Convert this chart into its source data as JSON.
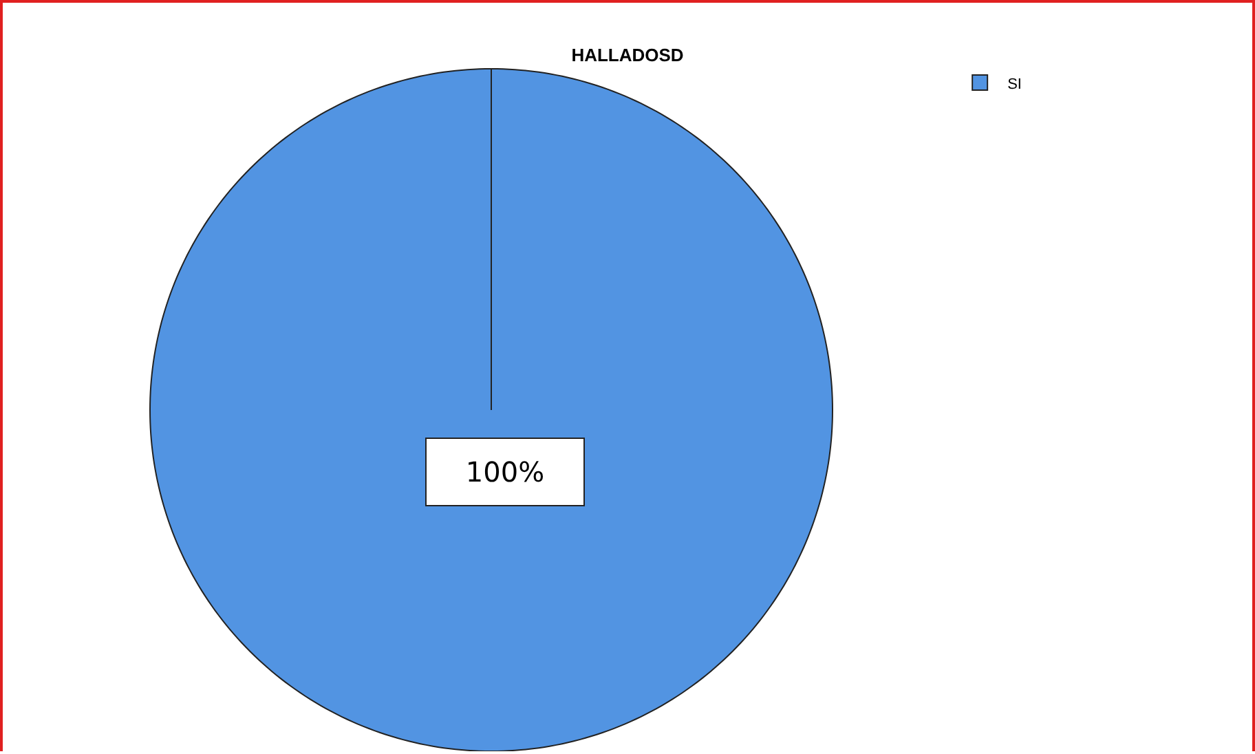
{
  "chart_data": {
    "type": "pie",
    "title": "HALLADOSD",
    "categories": [
      "SI"
    ],
    "values": [
      100
    ],
    "colors": [
      "#5294e2"
    ],
    "value_labels": [
      "100%"
    ],
    "legend": "top right"
  }
}
